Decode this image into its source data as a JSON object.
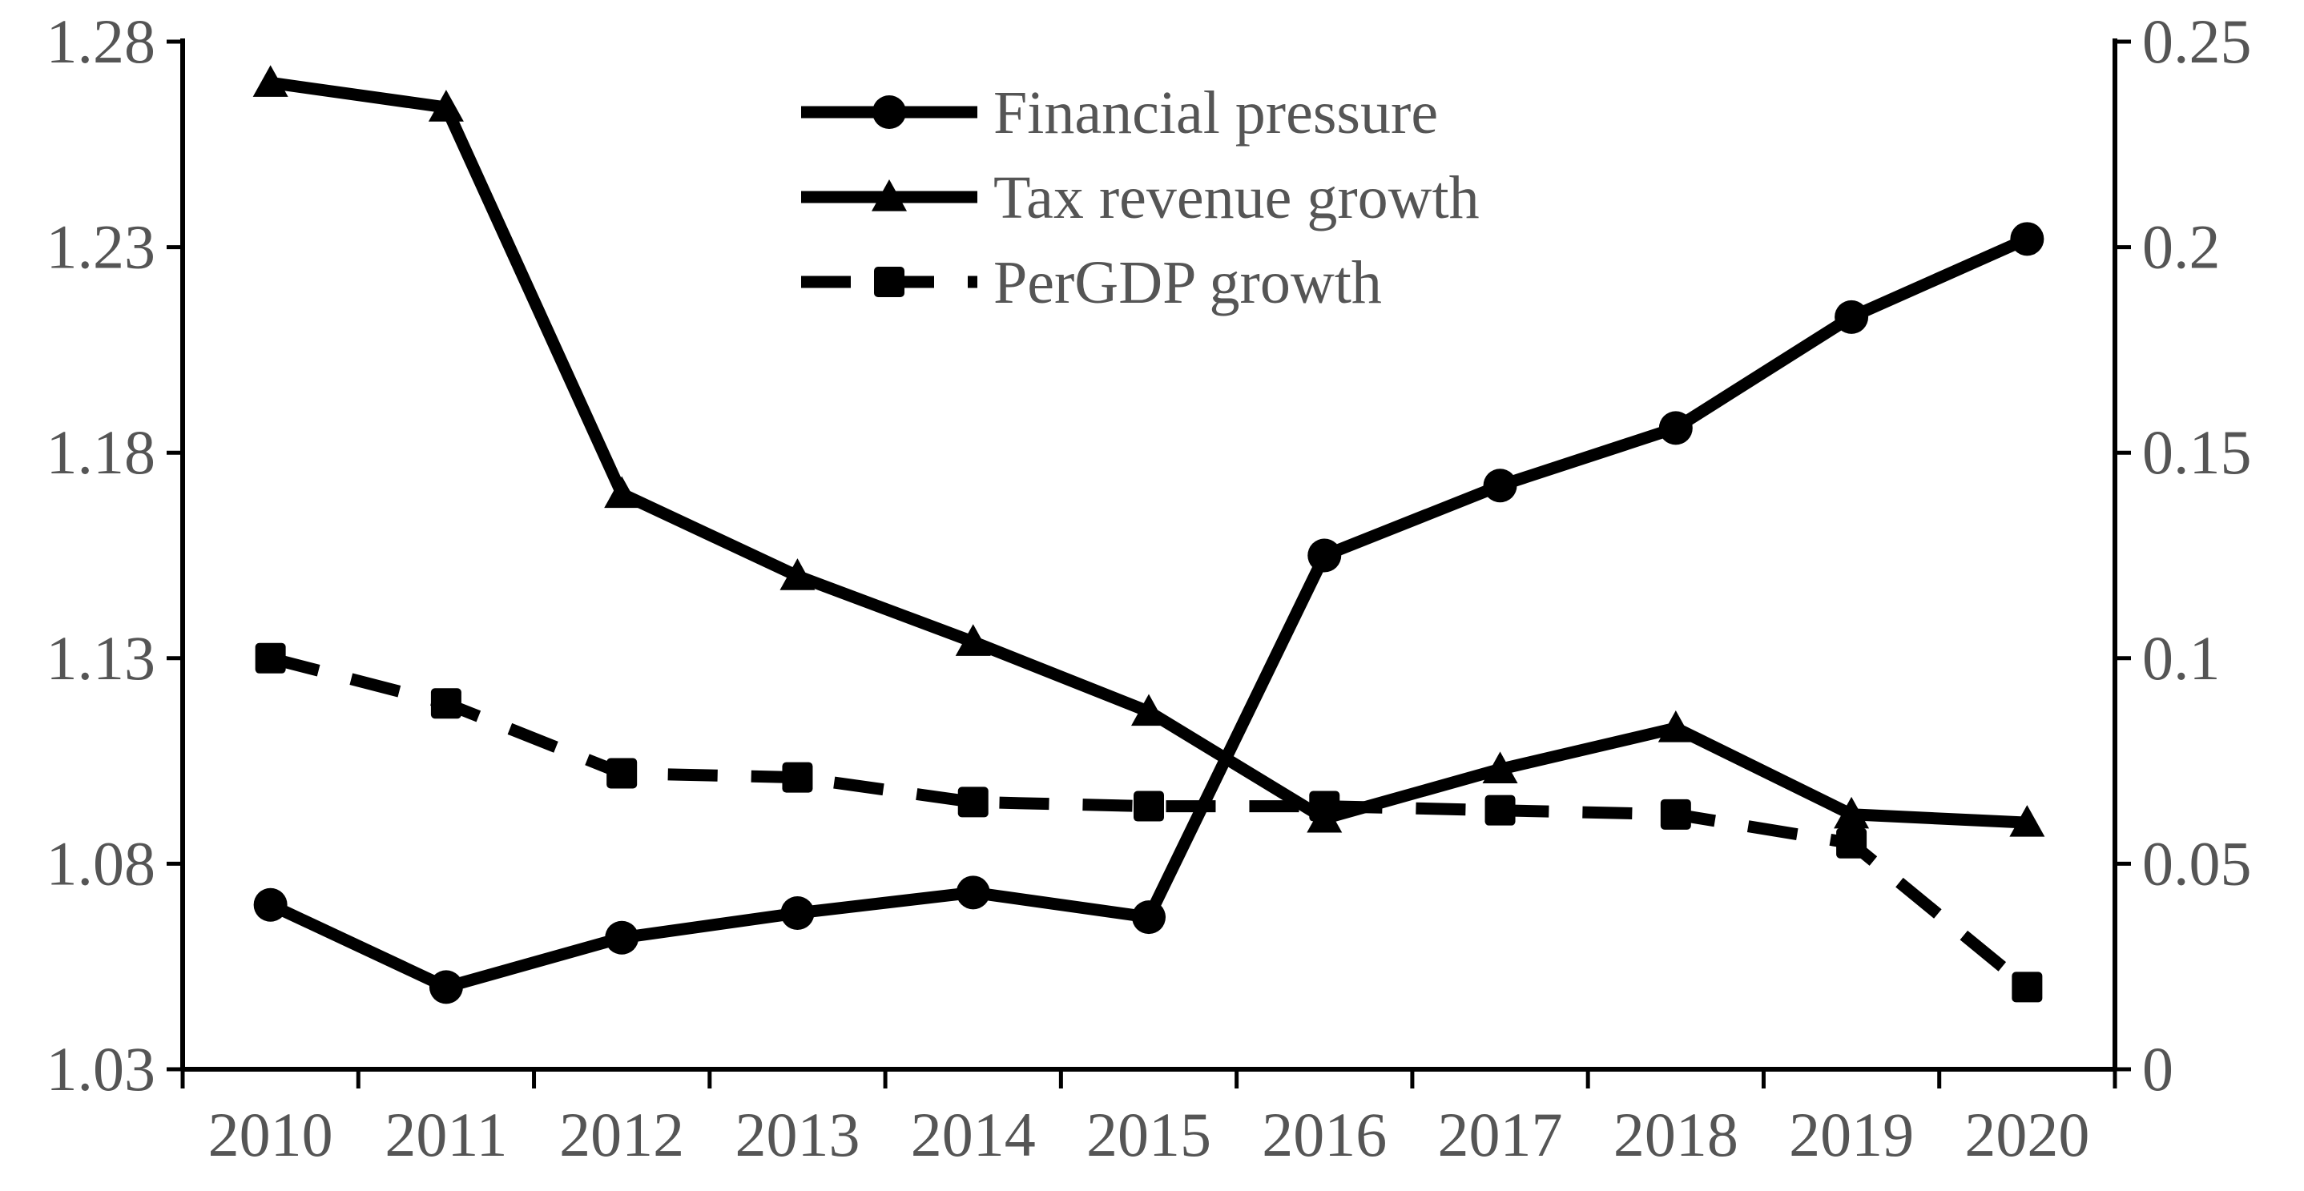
{
  "chart_data": {
    "type": "line",
    "title": "",
    "xlabel": "",
    "ylabel": "",
    "y2label": "",
    "categories": [
      "2010",
      "2011",
      "2012",
      "2013",
      "2014",
      "2015",
      "2016",
      "2017",
      "2018",
      "2019",
      "2020"
    ],
    "ylim": [
      1.03,
      1.28
    ],
    "y2lim": [
      0,
      0.25
    ],
    "yticks": [
      "1.03",
      "1.08",
      "1.13",
      "1.18",
      "1.23",
      "1.28"
    ],
    "y2ticks": [
      "0",
      "0.05",
      "0.1",
      "0.15",
      "0.2",
      "0.25"
    ],
    "legend_position": "top-center",
    "grid": false,
    "series": [
      {
        "name": "Financial pressure",
        "axis": "left",
        "marker": "circle",
        "line_style": "solid",
        "color": "#000000",
        "values": [
          1.07,
          1.05,
          1.062,
          1.068,
          1.073,
          1.067,
          1.155,
          1.172,
          1.186,
          1.213,
          1.232
        ]
      },
      {
        "name": "Tax revenue growth",
        "axis": "right",
        "marker": "triangle",
        "line_style": "solid",
        "color": "#000000",
        "values": [
          0.24,
          0.234,
          0.14,
          0.12,
          0.104,
          0.087,
          0.061,
          0.073,
          0.083,
          0.062,
          0.06
        ]
      },
      {
        "name": "PerGDP growth",
        "axis": "left",
        "marker": "square",
        "line_style": "dashed",
        "color": "#000000",
        "values": [
          1.13,
          1.119,
          1.102,
          1.101,
          1.095,
          1.094,
          1.094,
          1.093,
          1.092,
          1.085,
          1.05
        ]
      }
    ]
  }
}
